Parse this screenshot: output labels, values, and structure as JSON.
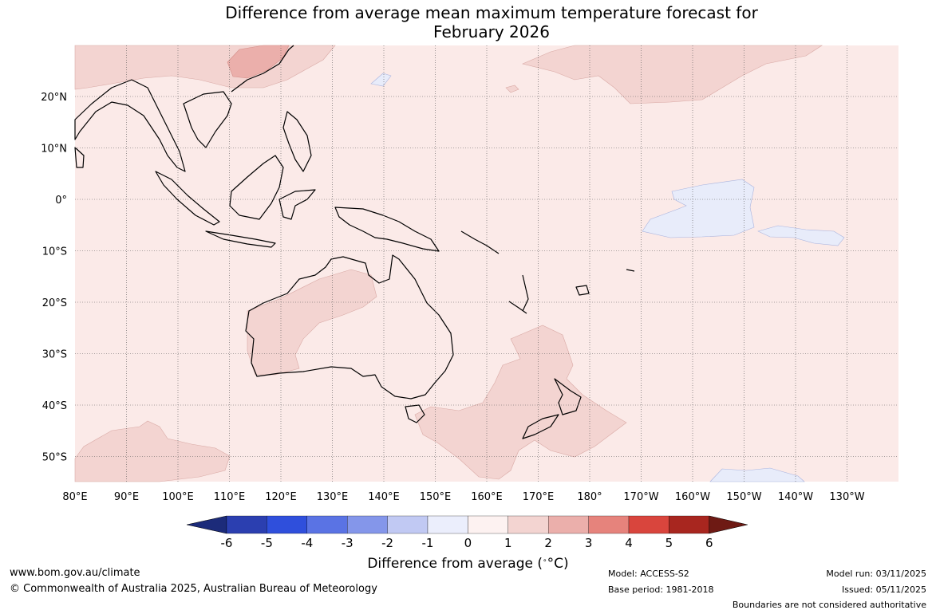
{
  "title": {
    "line1": "Difference from average mean maximum temperature forecast for",
    "line2": "February 2026"
  },
  "map": {
    "lon_labels": [
      "80°E",
      "90°E",
      "100°E",
      "110°E",
      "120°E",
      "130°E",
      "140°E",
      "150°E",
      "160°E",
      "170°E",
      "180°",
      "170°W",
      "160°W",
      "150°W",
      "140°W",
      "130°W"
    ],
    "lat_labels": [
      "20°N",
      "10°N",
      "0°",
      "10°S",
      "20°S",
      "30°S",
      "40°S",
      "50°S"
    ],
    "colors": {
      "background_anomaly": "#fbeae8",
      "warm_1_2": "#f3d4d1",
      "warm_2_3": "#ebafab",
      "cool_0_1": "#e8ecfa",
      "land_outline": "#000000",
      "grid": "#555555"
    }
  },
  "colorbar": {
    "tick_labels": [
      "-6",
      "-5",
      "-4",
      "-3",
      "-2",
      "-1",
      "0",
      "1",
      "2",
      "3",
      "4",
      "5",
      "6"
    ],
    "colors": [
      "#1c2b7a",
      "#2b3fb0",
      "#2f4fdc",
      "#5a73e4",
      "#8496ea",
      "#c1c9f3",
      "#ebeefc",
      "#fdf2f1",
      "#f3d4d1",
      "#ebafab",
      "#e6837c",
      "#d9453d",
      "#a8261f",
      "#6e1a14"
    ],
    "title": "Difference from average (",
    "unit": "°C)"
  },
  "footer": {
    "website": "www.bom.gov.au/climate",
    "copyright": "© Commonwealth of Australia 2025, Australian Bureau of Meteorology",
    "model": "Model: ACCESS-S2",
    "base_period": "Base period: 1981-2018",
    "model_run": "Model run: 03/11/2025",
    "issued": "Issued: 05/11/2025",
    "disclaimer": "Boundaries are not considered authoritative"
  }
}
